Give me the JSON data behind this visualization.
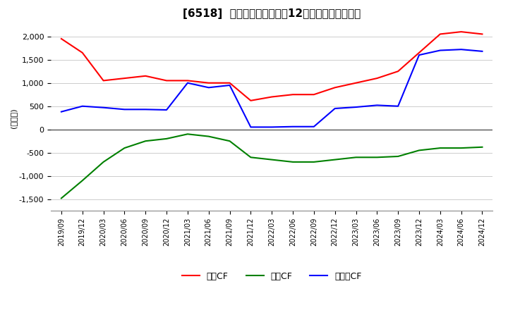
{
  "title": "[6518]  キャッシュフローの12か月移動合計の推移",
  "ylabel": "(百万円)",
  "ylim": [
    -1750,
    2250
  ],
  "yticks": [
    -1500,
    -1000,
    -500,
    0,
    500,
    1000,
    1500,
    2000
  ],
  "legend_labels": [
    "営業CF",
    "投資CF",
    "フリーCF"
  ],
  "line_colors": [
    "#ff0000",
    "#008000",
    "#0000ff"
  ],
  "x_labels": [
    "2019/09",
    "2019/12",
    "2020/03",
    "2020/06",
    "2020/09",
    "2020/12",
    "2021/03",
    "2021/06",
    "2021/09",
    "2021/12",
    "2022/03",
    "2022/06",
    "2022/09",
    "2022/12",
    "2023/03",
    "2023/06",
    "2023/09",
    "2023/12",
    "2024/03",
    "2024/06",
    "2024/12"
  ],
  "operating_cf": [
    1950,
    1650,
    1050,
    1100,
    1150,
    1050,
    1050,
    1000,
    1000,
    620,
    700,
    750,
    750,
    900,
    1000,
    1100,
    1250,
    1650,
    2050,
    2100,
    2050
  ],
  "investing_cf": [
    -1480,
    -1100,
    -700,
    -400,
    -250,
    -200,
    -100,
    -150,
    -250,
    -600,
    -650,
    -700,
    -700,
    -650,
    -600,
    -600,
    -580,
    -450,
    -400,
    -400,
    -380
  ],
  "free_cf": [
    380,
    500,
    470,
    430,
    430,
    420,
    1000,
    900,
    950,
    50,
    50,
    60,
    60,
    450,
    480,
    520,
    500,
    1600,
    1700,
    1720,
    1680
  ]
}
